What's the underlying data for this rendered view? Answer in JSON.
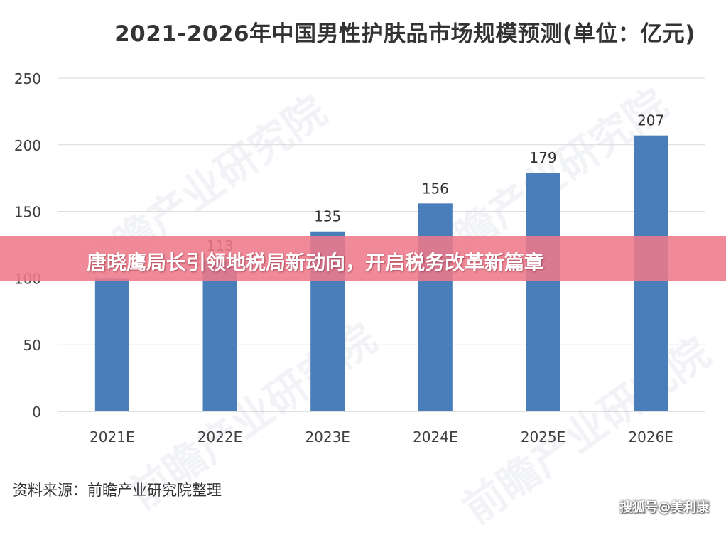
{
  "chart_data": {
    "type": "bar",
    "title": "2021-2026年中国男性护肤品市场规模预测(单位：亿元)",
    "xlabel": "",
    "ylabel": "",
    "categories": [
      "2021E",
      "2022E",
      "2023E",
      "2024E",
      "2025E",
      "2026E"
    ],
    "values": [
      100,
      113,
      135,
      156,
      179,
      207
    ],
    "data_labels": [
      "",
      "113",
      "135",
      "156",
      "179",
      "207"
    ],
    "ylim": [
      0,
      250
    ],
    "yticks": [
      0,
      50,
      100,
      150,
      200,
      250
    ],
    "grid": true,
    "bar_color": "#4a7ebb"
  },
  "banner": {
    "text": "唐晓鹰局长引领地税局新动向，开启税务改革新篇章",
    "color": "#ee7a8a"
  },
  "source_note": "资料来源：前瞻产业研究院整理",
  "watermark": "前瞻产业研究院",
  "platform_mark": "搜狐号@美利康"
}
